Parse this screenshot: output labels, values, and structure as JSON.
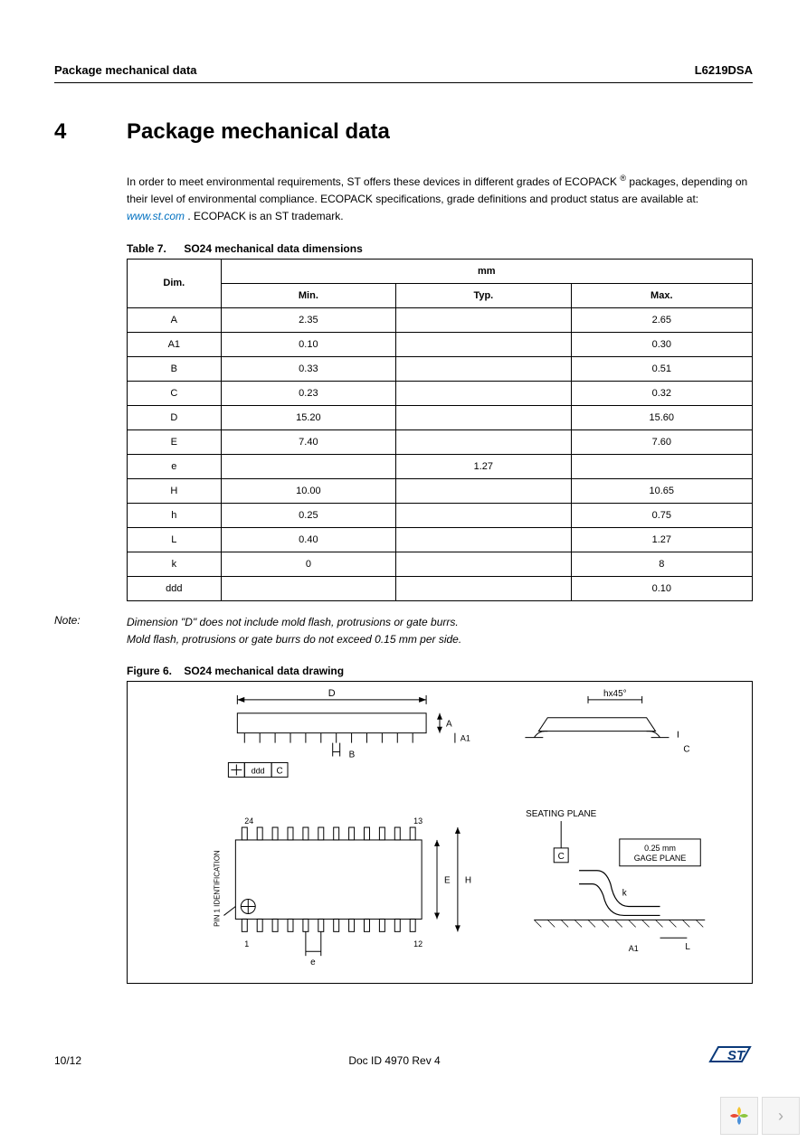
{
  "header": {
    "left": "Package mechanical data",
    "right": "L6219DSA"
  },
  "section": {
    "number": "4",
    "title": "Package mechanical data"
  },
  "intro": {
    "text1": "In order to meet environmental requirements, ST offers these devices in different grades of ECOPACK",
    "reg": "®",
    "text2": " packages, depending on their level of environmental compliance. ECOPACK specifications, grade definitions and product status are available at: ",
    "link": "www.st.com",
    "text3": " . ECOPACK is an ST trademark."
  },
  "table7": {
    "caption_label": "Table 7.",
    "caption_title": "SO24 mechanical data dimensions",
    "head_dim": "Dim.",
    "head_unit": "mm",
    "head_min": "Min.",
    "head_typ": "Typ.",
    "head_max": "Max.",
    "rows": [
      {
        "dim": "A",
        "min": "2.35",
        "typ": "",
        "max": "2.65"
      },
      {
        "dim": "A1",
        "min": "0.10",
        "typ": "",
        "max": "0.30"
      },
      {
        "dim": "B",
        "min": "0.33",
        "typ": "",
        "max": "0.51"
      },
      {
        "dim": "C",
        "min": "0.23",
        "typ": "",
        "max": "0.32"
      },
      {
        "dim": "D",
        "min": "15.20",
        "typ": "",
        "max": "15.60"
      },
      {
        "dim": "E",
        "min": "7.40",
        "typ": "",
        "max": "7.60"
      },
      {
        "dim": "e",
        "min": "",
        "typ": "1.27",
        "max": ""
      },
      {
        "dim": "H",
        "min": "10.00",
        "typ": "",
        "max": "10.65"
      },
      {
        "dim": "h",
        "min": "0.25",
        "typ": "",
        "max": "0.75"
      },
      {
        "dim": "L",
        "min": "0.40",
        "typ": "",
        "max": "1.27"
      },
      {
        "dim": "k",
        "min": "0",
        "typ": "",
        "max": "8"
      },
      {
        "dim": "ddd",
        "min": "",
        "typ": "",
        "max": "0.10"
      }
    ]
  },
  "note": {
    "label": "Note:",
    "line1": "Dimension \"D\" does not include mold flash, protrusions or gate burrs.",
    "line2": "Mold flash, protrusions or gate burrs do not exceed 0.15 mm per side."
  },
  "figure6": {
    "caption_label": "Figure 6.",
    "caption_title": "SO24 mechanical data drawing",
    "labels": {
      "D": "D",
      "A": "A",
      "A1": "A1",
      "B": "B",
      "ddd": "ddd",
      "C": "C",
      "C2": "C",
      "hx45": "hx45°",
      "pin_id": "PIN 1 IDENTIFICATION",
      "p24": "24",
      "p13": "13",
      "p1": "1",
      "p12": "12",
      "E": "E",
      "H": "H",
      "e": "e",
      "seating": "SEATING PLANE",
      "gage": "0.25 mm GAGE PLANE",
      "k": "k",
      "L": "L",
      "A1_2": "A1"
    }
  },
  "footer": {
    "page": "10/12",
    "doc": "Doc ID 4970 Rev 4",
    "logo": "ST"
  },
  "colors": {
    "text": "#000000",
    "link": "#0070c0",
    "logo": "#0a3a7a",
    "nav_bg": "#f5f5f5",
    "nav_border": "#dddddd",
    "nav_arrow": "#aaaaaa",
    "petal_yellow": "#f4c430",
    "petal_green": "#8cc63f",
    "petal_blue": "#4a90d9",
    "petal_red": "#e94b35"
  }
}
